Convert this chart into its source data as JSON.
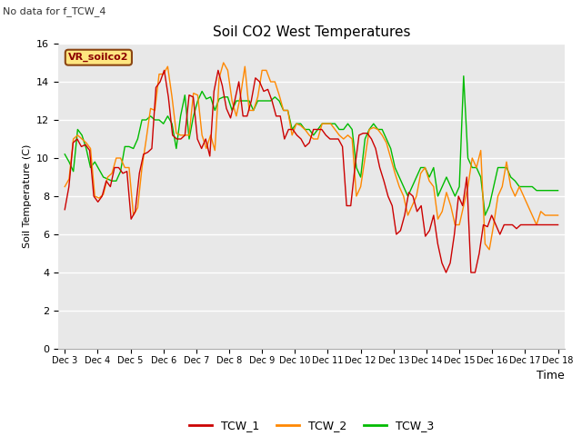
{
  "title": "Soil CO2 West Temperatures",
  "no_data_label": "No data for f_TCW_4",
  "vr_label": "VR_soilco2",
  "ylabel": "Soil Temperature (C)",
  "xlabel": "Time",
  "ylim": [
    0,
    16
  ],
  "yticks": [
    0,
    2,
    4,
    6,
    8,
    10,
    12,
    14,
    16
  ],
  "x_labels": [
    "Dec 3",
    "Dec 4",
    "Dec 5",
    "Dec 6",
    "Dec 7",
    "Dec 8",
    "Dec 9",
    "Dec 10",
    "Dec 11",
    "Dec 12",
    "Dec 13",
    "Dec 14",
    "Dec 15",
    "Dec 16",
    "Dec 17",
    "Dec 18"
  ],
  "bg_color": "#e8e8e8",
  "fig_bg": "#ffffff",
  "tcw1_color": "#cc0000",
  "tcw2_color": "#ff8800",
  "tcw3_color": "#00bb00",
  "line_width": 1.0,
  "TCW_1": [
    7.3,
    8.5,
    10.8,
    11.0,
    10.6,
    10.7,
    10.4,
    8.0,
    7.7,
    8.0,
    8.8,
    8.5,
    9.5,
    9.5,
    9.2,
    9.3,
    6.8,
    7.2,
    9.2,
    10.2,
    10.3,
    10.5,
    13.7,
    14.0,
    14.6,
    13.2,
    11.2,
    11.0,
    11.0,
    11.2,
    13.3,
    13.2,
    11.0,
    10.5,
    11.0,
    10.1,
    13.5,
    14.6,
    13.8,
    12.6,
    12.1,
    13.0,
    14.0,
    12.2,
    12.2,
    13.0,
    14.2,
    14.0,
    13.5,
    13.6,
    13.0,
    12.2,
    12.2,
    11.0,
    11.5,
    11.5,
    11.2,
    11.0,
    10.6,
    10.8,
    11.5,
    11.5,
    11.5,
    11.2,
    11.0,
    11.0,
    11.0,
    10.6,
    7.5,
    7.5,
    9.5,
    11.2,
    11.3,
    11.3,
    11.0,
    10.5,
    9.5,
    8.8,
    8.0,
    7.5,
    6.0,
    6.2,
    7.0,
    8.2,
    8.0,
    7.2,
    7.5,
    5.9,
    6.2,
    7.0,
    5.5,
    4.5,
    4.0,
    4.5,
    6.0,
    8.0,
    7.5,
    9.0,
    4.0,
    4.0,
    5.0,
    6.5,
    6.4,
    7.0,
    6.5,
    6.0,
    6.5,
    6.5,
    6.5,
    6.3,
    6.5,
    6.5,
    6.5,
    6.5,
    6.5,
    6.5,
    6.5,
    6.5,
    6.5,
    6.5
  ],
  "TCW_2": [
    8.5,
    8.9,
    11.0,
    11.2,
    11.0,
    10.8,
    10.5,
    8.0,
    7.9,
    8.1,
    9.0,
    9.2,
    10.0,
    10.0,
    9.5,
    9.5,
    7.0,
    7.4,
    9.5,
    11.0,
    12.6,
    12.5,
    14.4,
    14.4,
    14.8,
    13.2,
    11.3,
    11.2,
    11.2,
    11.2,
    13.4,
    13.3,
    11.2,
    10.5,
    11.2,
    10.4,
    14.2,
    15.0,
    14.6,
    13.0,
    12.2,
    13.3,
    14.8,
    12.5,
    12.5,
    13.2,
    14.6,
    14.6,
    14.0,
    14.0,
    13.3,
    12.5,
    12.5,
    11.2,
    11.8,
    11.7,
    11.5,
    11.2,
    11.0,
    11.0,
    11.8,
    11.8,
    11.8,
    11.5,
    11.2,
    11.0,
    11.2,
    11.0,
    8.0,
    8.5,
    10.0,
    11.5,
    11.6,
    11.5,
    11.2,
    10.8,
    10.0,
    9.2,
    8.5,
    8.0,
    7.0,
    7.5,
    8.0,
    9.2,
    9.5,
    8.8,
    8.5,
    6.8,
    7.2,
    8.2,
    7.5,
    6.5,
    6.5,
    7.5,
    8.5,
    10.0,
    9.5,
    10.4,
    5.5,
    5.2,
    6.5,
    8.0,
    8.5,
    9.8,
    8.5,
    8.0,
    8.5,
    8.0,
    7.5,
    7.0,
    6.5,
    7.2,
    7.0,
    7.0,
    7.0,
    7.0
  ],
  "TCW_3": [
    10.2,
    9.8,
    9.3,
    11.5,
    11.2,
    10.5,
    9.5,
    9.8,
    9.4,
    9.0,
    8.9,
    8.8,
    8.8,
    9.3,
    10.6,
    10.6,
    10.5,
    11.0,
    12.0,
    12.0,
    12.2,
    12.0,
    12.0,
    11.8,
    12.2,
    11.8,
    10.5,
    12.2,
    13.3,
    11.0,
    12.2,
    13.0,
    13.5,
    13.1,
    13.2,
    12.5,
    13.1,
    13.2,
    13.2,
    12.5,
    13.0,
    13.0,
    13.0,
    13.0,
    12.5,
    13.0,
    13.0,
    13.0,
    13.0,
    13.2,
    13.0,
    12.5,
    12.5,
    11.5,
    11.8,
    11.8,
    11.5,
    11.5,
    11.2,
    11.5,
    11.8,
    11.8,
    11.8,
    11.8,
    11.5,
    11.5,
    11.8,
    11.5,
    9.5,
    9.0,
    11.0,
    11.5,
    11.8,
    11.5,
    11.5,
    11.0,
    10.5,
    9.5,
    9.0,
    8.5,
    8.0,
    8.5,
    9.0,
    9.5,
    9.5,
    9.0,
    9.5,
    8.0,
    8.5,
    9.0,
    8.5,
    8.0,
    8.5,
    14.3,
    10.0,
    9.5,
    9.5,
    9.0,
    7.0,
    7.5,
    8.5,
    9.5,
    9.5,
    9.5,
    9.0,
    8.8,
    8.5,
    8.5,
    8.5,
    8.5,
    8.3,
    8.3,
    8.3,
    8.3,
    8.3,
    8.3
  ]
}
